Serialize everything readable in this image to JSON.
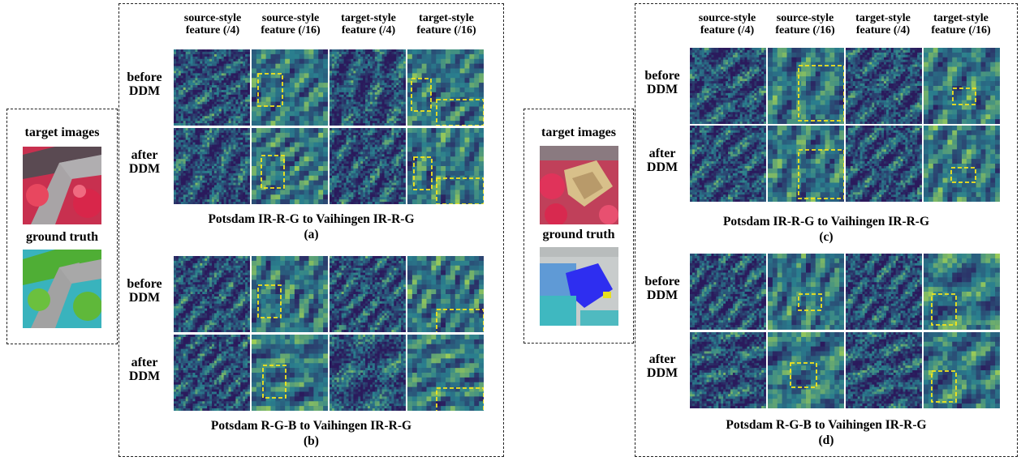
{
  "column_headers": [
    "source-style\nfeature (/4)",
    "source-style\nfeature (/16)",
    "target-style\nfeature (/4)",
    "target-style\nfeature (/16)"
  ],
  "row_labels": {
    "before": "before\nDDM",
    "after": "after\nDDM"
  },
  "side_labels": {
    "target_images": "target images",
    "ground_truth": "ground truth"
  },
  "panels": {
    "a": {
      "caption": "Potsdam IR-R-G to Vaihingen IR-R-G",
      "sub": "(a)"
    },
    "b": {
      "caption": "Potsdam R-G-B to Vaihingen IR-R-G",
      "sub": "(b)"
    },
    "c": {
      "caption": "Potsdam IR-R-G to Vaihingen IR-R-G",
      "sub": "(c)"
    },
    "d": {
      "caption": "Potsdam R-G-B to Vaihingen IR-R-G",
      "sub": "(d)"
    }
  },
  "colors": {
    "feature_low": "#2b1a5c",
    "feature_mid": "#2a7f8e",
    "feature_high": "#b8e04a",
    "highlight_box": "#f5e51b",
    "ir_red": "#e0335a",
    "road_gray": "#9a9a9a",
    "gt_green": "#5fb83a",
    "gt_cyan": "#3fb8c0",
    "gt_blue": "#2e2ef0"
  }
}
